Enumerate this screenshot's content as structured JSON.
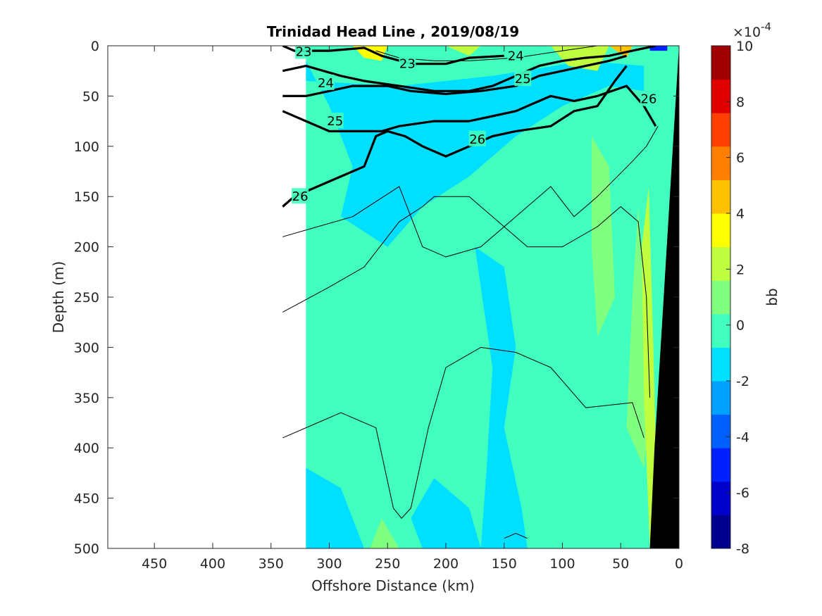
{
  "chart_data": {
    "type": "heatmap",
    "title": "Trinidad Head Line , 2019/08/19",
    "xlabel": "Offshore Distance (km)",
    "ylabel": "Depth (m)",
    "x_direction": "reversed",
    "y_direction": "reversed",
    "xlim": [
      0,
      490
    ],
    "ylim": [
      0,
      500
    ],
    "x_ticks": [
      450,
      400,
      350,
      300,
      250,
      200,
      150,
      100,
      50,
      0
    ],
    "y_ticks": [
      0,
      50,
      100,
      150,
      200,
      250,
      300,
      350,
      400,
      450,
      500
    ],
    "colorbar": {
      "label": "bb",
      "exponent_label": "×10",
      "exponent_power": "-4",
      "min": -8,
      "max": 10,
      "step": 1.5,
      "ticks": [
        10,
        8,
        6,
        4,
        2,
        0,
        -2,
        -4,
        -6,
        -8
      ],
      "colors": [
        "#00008f",
        "#0000cc",
        "#0020ff",
        "#0060ff",
        "#00a0ff",
        "#00dfff",
        "#40ffbf",
        "#80ff80",
        "#bfff40",
        "#ffff00",
        "#ffc000",
        "#ff8000",
        "#ff4000",
        "#e00000",
        "#a00000"
      ]
    },
    "data_extent_km": [
      0,
      320
    ],
    "background_level": 1.8,
    "patches": [
      {
        "level": 0.6,
        "points": [
          [
            320,
            15
          ],
          [
            300,
            60
          ],
          [
            280,
            120
          ],
          [
            290,
            170
          ],
          [
            250,
            200
          ],
          [
            220,
            160
          ],
          [
            180,
            130
          ],
          [
            140,
            90
          ],
          [
            100,
            60
          ],
          [
            60,
            40
          ],
          [
            30,
            45
          ],
          [
            30,
            20
          ],
          [
            80,
            15
          ],
          [
            160,
            30
          ],
          [
            240,
            40
          ],
          [
            320,
            35
          ]
        ]
      },
      {
        "level": 0.6,
        "points": [
          [
            175,
            200
          ],
          [
            150,
            220
          ],
          [
            140,
            300
          ],
          [
            150,
            380
          ],
          [
            135,
            460
          ],
          [
            130,
            500
          ],
          [
            170,
            500
          ],
          [
            165,
            420
          ],
          [
            160,
            320
          ],
          [
            170,
            240
          ]
        ]
      },
      {
        "level": 0.6,
        "points": [
          [
            320,
            420
          ],
          [
            290,
            440
          ],
          [
            270,
            500
          ],
          [
            320,
            500
          ]
        ]
      },
      {
        "level": 0.6,
        "points": [
          [
            210,
            430
          ],
          [
            180,
            460
          ],
          [
            170,
            500
          ],
          [
            220,
            500
          ],
          [
            230,
            470
          ]
        ]
      },
      {
        "level": 3.0,
        "points": [
          [
            75,
            90
          ],
          [
            60,
            120
          ],
          [
            55,
            250
          ],
          [
            70,
            290
          ],
          [
            75,
            200
          ]
        ]
      },
      {
        "level": 3.0,
        "points": [
          [
            255,
            470
          ],
          [
            240,
            500
          ],
          [
            265,
            500
          ]
        ]
      },
      {
        "level": 3.0,
        "points": [
          [
            35,
            160
          ],
          [
            28,
            260
          ],
          [
            25,
            360
          ],
          [
            30,
            420
          ],
          [
            45,
            380
          ],
          [
            40,
            250
          ]
        ]
      },
      {
        "level": 5.0,
        "points": [
          [
            26,
            140
          ],
          [
            22,
            300
          ],
          [
            18,
            500
          ],
          [
            25,
            500
          ],
          [
            30,
            350
          ],
          [
            32,
            200
          ]
        ]
      },
      {
        "level": 6.5,
        "points": [
          [
            280,
            0
          ],
          [
            250,
            0
          ],
          [
            255,
            15
          ],
          [
            270,
            12
          ]
        ]
      },
      {
        "level": 5.0,
        "points": [
          [
            200,
            0
          ],
          [
            170,
            0
          ],
          [
            180,
            10
          ]
        ]
      },
      {
        "level": 5.0,
        "points": [
          [
            110,
            0
          ],
          [
            60,
            0
          ],
          [
            70,
            25
          ],
          [
            95,
            20
          ]
        ]
      },
      {
        "level": 7.5,
        "points": [
          [
            60,
            0
          ],
          [
            40,
            0
          ],
          [
            45,
            12
          ]
        ]
      },
      {
        "level": -5.0,
        "points": [
          [
            25,
            0
          ],
          [
            10,
            0
          ],
          [
            10,
            5
          ],
          [
            25,
            5
          ]
        ]
      }
    ],
    "bathymetry": [
      [
        0,
        500
      ],
      [
        25,
        500
      ],
      [
        21,
        400
      ],
      [
        0,
        0
      ]
    ],
    "contours": [
      {
        "level": 23,
        "bold": true,
        "points": [
          [
            340,
            0
          ],
          [
            330,
            5
          ],
          [
            300,
            5
          ],
          [
            270,
            2
          ],
          [
            255,
            10
          ],
          [
            230,
            18
          ],
          [
            200,
            18
          ],
          [
            180,
            12
          ],
          [
            150,
            10
          ]
        ]
      },
      {
        "level": 23,
        "bold": false,
        "points": [
          [
            260,
            5
          ],
          [
            240,
            12
          ],
          [
            210,
            15
          ],
          [
            180,
            15
          ],
          [
            140,
            12
          ],
          [
            100,
            5
          ],
          [
            70,
            0
          ]
        ]
      },
      {
        "level": 24,
        "bold": true,
        "points": [
          [
            340,
            25
          ],
          [
            320,
            20
          ],
          [
            290,
            30
          ],
          [
            270,
            35
          ],
          [
            240,
            40
          ],
          [
            210,
            45
          ],
          [
            180,
            45
          ],
          [
            160,
            40
          ],
          [
            140,
            30
          ],
          [
            120,
            20
          ],
          [
            100,
            15
          ],
          [
            80,
            12
          ],
          [
            60,
            10
          ],
          [
            40,
            5
          ],
          [
            20,
            0
          ]
        ]
      },
      {
        "level": 25,
        "bold": true,
        "points": [
          [
            340,
            50
          ],
          [
            320,
            50
          ],
          [
            300,
            45
          ],
          [
            280,
            40
          ],
          [
            250,
            40
          ],
          [
            230,
            45
          ],
          [
            200,
            48
          ],
          [
            170,
            45
          ],
          [
            140,
            40
          ],
          [
            120,
            30
          ],
          [
            100,
            25
          ],
          [
            80,
            20
          ],
          [
            60,
            15
          ],
          [
            45,
            10
          ]
        ]
      },
      {
        "level": 26,
        "bold": true,
        "points": [
          [
            340,
            65
          ],
          [
            320,
            75
          ],
          [
            300,
            85
          ],
          [
            280,
            85
          ],
          [
            255,
            85
          ],
          [
            240,
            80
          ],
          [
            210,
            75
          ],
          [
            180,
            75
          ],
          [
            160,
            70
          ],
          [
            140,
            65
          ],
          [
            110,
            50
          ],
          [
            90,
            55
          ],
          [
            70,
            50
          ],
          [
            45,
            40
          ],
          [
            30,
            60
          ],
          [
            20,
            80
          ]
        ]
      },
      {
        "level": 26,
        "bold": true,
        "points": [
          [
            340,
            160
          ],
          [
            330,
            150
          ],
          [
            310,
            140
          ],
          [
            290,
            130
          ],
          [
            270,
            120
          ],
          [
            260,
            90
          ],
          [
            250,
            85
          ],
          [
            235,
            90
          ],
          [
            220,
            100
          ],
          [
            200,
            110
          ],
          [
            180,
            100
          ],
          [
            160,
            90
          ],
          [
            140,
            85
          ],
          [
            110,
            80
          ],
          [
            90,
            65
          ],
          [
            70,
            60
          ],
          [
            55,
            35
          ],
          [
            45,
            20
          ]
        ]
      },
      {
        "level": 26,
        "bold": false,
        "points": [
          [
            340,
            190
          ],
          [
            310,
            180
          ],
          [
            280,
            170
          ],
          [
            240,
            140
          ],
          [
            220,
            200
          ],
          [
            200,
            210
          ],
          [
            170,
            200
          ],
          [
            140,
            170
          ],
          [
            110,
            140
          ],
          [
            90,
            170
          ],
          [
            70,
            150
          ],
          [
            40,
            115
          ],
          [
            28,
            100
          ],
          [
            18,
            80
          ]
        ]
      },
      {
        "level": 26,
        "bold": false,
        "points": [
          [
            340,
            265
          ],
          [
            300,
            240
          ],
          [
            270,
            220
          ],
          [
            240,
            175
          ],
          [
            220,
            160
          ],
          [
            210,
            150
          ],
          [
            180,
            150
          ],
          [
            150,
            180
          ],
          [
            130,
            200
          ],
          [
            100,
            200
          ],
          [
            70,
            180
          ],
          [
            50,
            160
          ],
          [
            35,
            175
          ],
          [
            28,
            250
          ],
          [
            25,
            350
          ]
        ]
      },
      {
        "level": 26,
        "bold": false,
        "points": [
          [
            340,
            390
          ],
          [
            310,
            375
          ],
          [
            290,
            365
          ],
          [
            260,
            380
          ],
          [
            245,
            460
          ],
          [
            238,
            470
          ],
          [
            230,
            460
          ],
          [
            215,
            380
          ],
          [
            200,
            320
          ],
          [
            170,
            300
          ],
          [
            140,
            305
          ],
          [
            110,
            320
          ],
          [
            80,
            360
          ],
          [
            40,
            355
          ],
          [
            30,
            390
          ]
        ]
      },
      {
        "level": 26,
        "bold": false,
        "points": [
          [
            150,
            490
          ],
          [
            140,
            485
          ],
          [
            130,
            490
          ]
        ]
      }
    ],
    "contour_labels": [
      {
        "text": "23",
        "x": 322,
        "y": 6
      },
      {
        "text": "23",
        "x": 233,
        "y": 18
      },
      {
        "text": "24",
        "x": 303,
        "y": 37
      },
      {
        "text": "24",
        "x": 140,
        "y": 10
      },
      {
        "text": "25",
        "x": 295,
        "y": 75
      },
      {
        "text": "25",
        "x": 134,
        "y": 33
      },
      {
        "text": "26",
        "x": 173,
        "y": 93
      },
      {
        "text": "26",
        "x": 325,
        "y": 150
      },
      {
        "text": "26",
        "x": 26,
        "y": 53
      }
    ]
  }
}
